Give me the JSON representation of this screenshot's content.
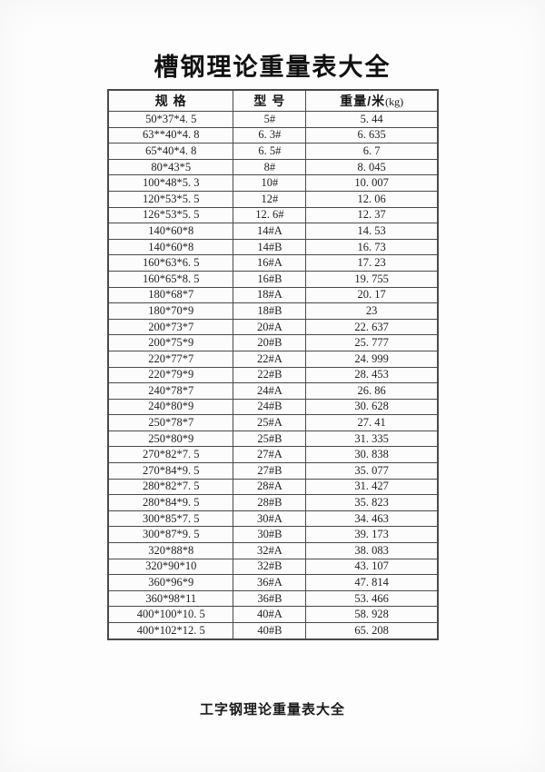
{
  "page": {
    "title": "槽钢理论重量表大全",
    "footer_title": "工字钢理论重量表大全"
  },
  "table": {
    "headers": {
      "spec": "规 格",
      "model": "型 号",
      "weight": "重量/米",
      "weight_unit": "(kg)"
    },
    "rows": [
      [
        "50*37*4. 5",
        "5#",
        "5. 44"
      ],
      [
        "63**40*4. 8",
        "6. 3#",
        "6. 635"
      ],
      [
        "65*40*4. 8",
        "6. 5#",
        "6. 7"
      ],
      [
        "80*43*5",
        "8#",
        "8. 045"
      ],
      [
        "100*48*5. 3",
        "10#",
        "10. 007"
      ],
      [
        "120*53*5. 5",
        "12#",
        "12. 06"
      ],
      [
        "126*53*5. 5",
        "12. 6#",
        "12. 37"
      ],
      [
        "140*60*8",
        "14#A",
        "14. 53"
      ],
      [
        "140*60*8",
        "14#B",
        "16. 73"
      ],
      [
        "160*63*6. 5",
        "16#A",
        "17. 23"
      ],
      [
        "160*65*8. 5",
        "16#B",
        "19. 755"
      ],
      [
        "180*68*7",
        "18#A",
        "20. 17"
      ],
      [
        "180*70*9",
        "18#B",
        "23"
      ],
      [
        "200*73*7",
        "20#A",
        "22. 637"
      ],
      [
        "200*75*9",
        "20#B",
        "25. 777"
      ],
      [
        "220*77*7",
        "22#A",
        "24. 999"
      ],
      [
        "220*79*9",
        "22#B",
        "28. 453"
      ],
      [
        "240*78*7",
        "24#A",
        "26. 86"
      ],
      [
        "240*80*9",
        "24#B",
        "30. 628"
      ],
      [
        "250*78*7",
        "25#A",
        "27. 41"
      ],
      [
        "250*80*9",
        "25#B",
        "31. 335"
      ],
      [
        "270*82*7. 5",
        "27#A",
        "30. 838"
      ],
      [
        "270*84*9. 5",
        "27#B",
        "35. 077"
      ],
      [
        "280*82*7. 5",
        "28#A",
        "31. 427"
      ],
      [
        "280*84*9. 5",
        "28#B",
        "35. 823"
      ],
      [
        "300*85*7. 5",
        "30#A",
        "34. 463"
      ],
      [
        "300*87*9. 5",
        "30#B",
        "39. 173"
      ],
      [
        "320*88*8",
        "32#A",
        "38. 083"
      ],
      [
        "320*90*10",
        "32#B",
        "43. 107"
      ],
      [
        "360*96*9",
        "36#A",
        "47. 814"
      ],
      [
        "360*98*11",
        "36#B",
        "53. 466"
      ],
      [
        "400*100*10. 5",
        "40#A",
        "58. 928"
      ],
      [
        "400*102*12. 5",
        "40#B",
        "65. 208"
      ]
    ]
  }
}
